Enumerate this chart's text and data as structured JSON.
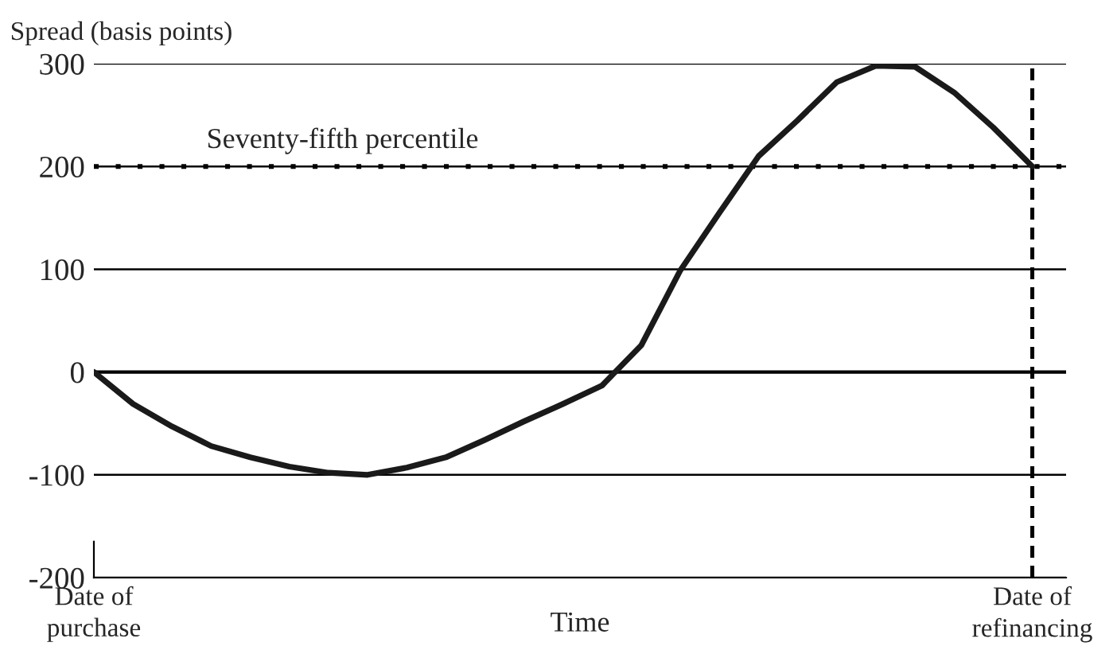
{
  "chart_data": {
    "type": "line",
    "ylabel": "Spread (basis points)",
    "xlabel": "Time",
    "categories": [
      "Date of\npurchase",
      null,
      null,
      null,
      null,
      null,
      null,
      null,
      null,
      null,
      null,
      null,
      null,
      null,
      null,
      null,
      null,
      null,
      null,
      null,
      null,
      null,
      null,
      null,
      "Date of\nrefinancing"
    ],
    "series": [
      {
        "color": "#1a1a1a",
        "values": [
          0,
          -31,
          -53,
          -72,
          -83,
          -92,
          -98,
          -100,
          -93,
          -83,
          -66,
          -48,
          -31,
          -13,
          26,
          99,
          155,
          210,
          245,
          282,
          298,
          297,
          272,
          238,
          200
        ]
      }
    ],
    "ylim": [
      -200,
      300
    ],
    "yticks": [
      -200,
      -100,
      0,
      100,
      200,
      300
    ],
    "grid": "y",
    "marker": "none",
    "line_style": "solid",
    "ref_lines": [
      {
        "axis": "y",
        "value": 200,
        "label": "Seventy-fifth percentile",
        "line_style": "dotted",
        "color": "#000000"
      },
      {
        "axis": "y",
        "value": 0,
        "line_style": "solid",
        "color": "#000000"
      },
      {
        "axis": "x",
        "value": "Date of\nrefinancing",
        "line_style": "dashed",
        "color": "#000000"
      }
    ],
    "legend": false
  }
}
